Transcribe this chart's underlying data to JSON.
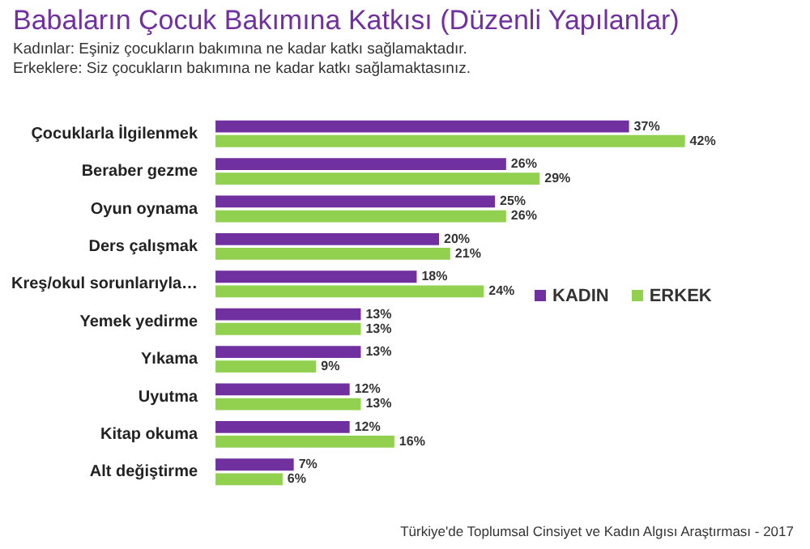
{
  "chart_data": {
    "type": "bar",
    "orientation": "horizontal",
    "title": "Babaların Çocuk Bakımına Katkısı (Düzenli Yapılanlar)",
    "subtitle": "Kadınlar: Eşiniz çocukların bakımına ne kadar katkı sağlamaktadır.\nErkeklere: Siz çocukların bakımına ne kadar katkı sağlamaktasınız.",
    "categories": [
      "Çocuklarla İlgilenmek",
      "Beraber gezme",
      "Oyun oynama",
      "Ders çalışmak",
      "Kreş/okul sorunlarıyla…",
      "Yemek yedirme",
      "Yıkama",
      "Uyutma",
      "Kitap okuma",
      "Alt değiştirme"
    ],
    "series": [
      {
        "name": "KADIN",
        "color": "#7030a0",
        "values": [
          37,
          26,
          25,
          20,
          18,
          13,
          13,
          12,
          12,
          7
        ],
        "value_labels": [
          "37%",
          "26%",
          "25%",
          "20%",
          "18%",
          "13%",
          "13%",
          "12%",
          "12%",
          "7%"
        ]
      },
      {
        "name": "ERKEK",
        "color": "#92d050",
        "values": [
          42,
          29,
          26,
          21,
          24,
          13,
          9,
          13,
          16,
          6
        ],
        "value_labels": [
          "42%",
          "29%",
          "26%",
          "21%",
          "24%",
          "13%",
          "9%",
          "13%",
          "16%",
          "6%"
        ]
      }
    ],
    "tick_labels": "y",
    "legend": "right",
    "annotations": [
      "Türkiye'de Toplumsal Cinsiyet ve Kadın Algısı Araştırması - 2017"
    ]
  }
}
